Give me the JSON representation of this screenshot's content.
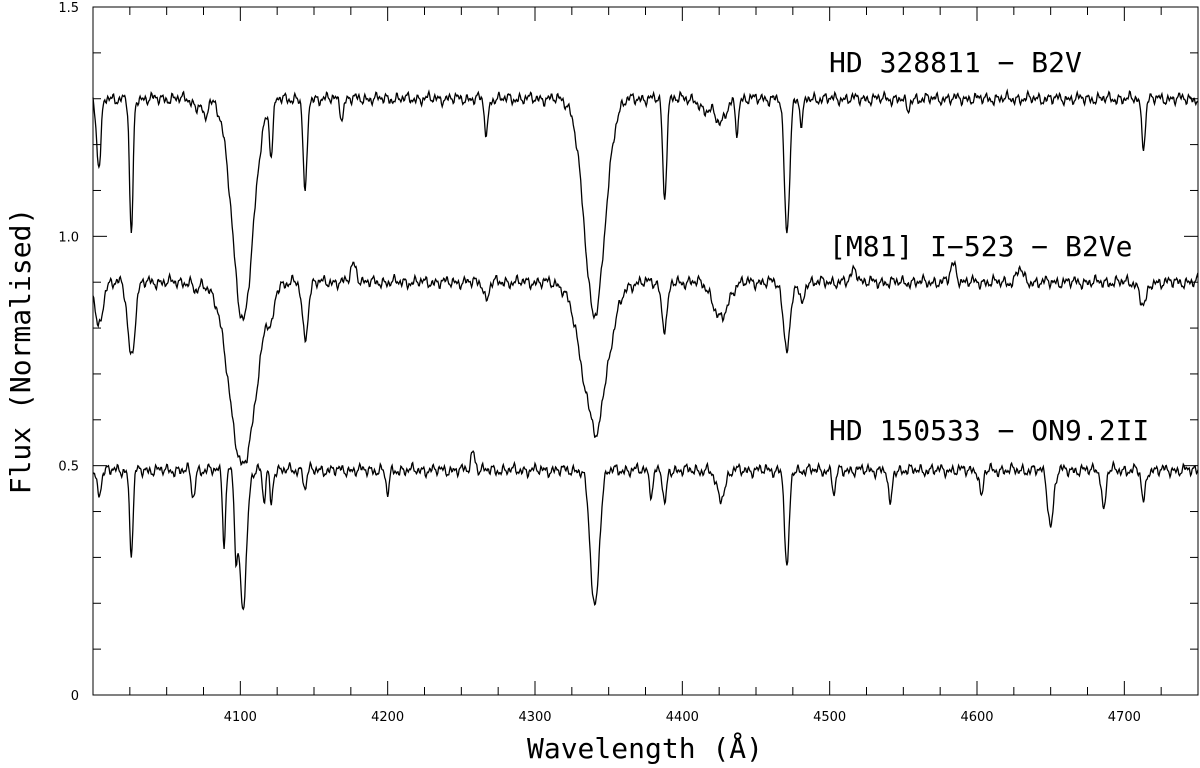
{
  "chart_data": {
    "type": "line",
    "title": "",
    "xlabel": "Wavelength (Å)",
    "ylabel": "Flux (Normalised)",
    "xlim": [
      4000,
      4750
    ],
    "ylim": [
      0,
      1.5
    ],
    "x_ticks": [
      4100,
      4200,
      4300,
      4400,
      4500,
      4600,
      4700
    ],
    "y_ticks": [
      0,
      0.5,
      1.0,
      1.5
    ],
    "y_tick_labels": [
      "0",
      "0.5",
      "1.0",
      "1.5"
    ],
    "grid": false,
    "series": [
      {
        "name": "HD 328811 − B2V",
        "continuum": 1.3,
        "lines": [
          {
            "x": 4004,
            "depth": 0.15,
            "width": 1.5
          },
          {
            "x": 4026,
            "depth": 0.3,
            "width": 1.2
          },
          {
            "x": 4070,
            "depth": 0.02,
            "width": 2
          },
          {
            "x": 4076,
            "depth": 0.05,
            "width": 1.5
          },
          {
            "x": 4101.7,
            "depth": 0.48,
            "width": 7
          },
          {
            "x": 4121,
            "depth": 0.11,
            "width": 1.2
          },
          {
            "x": 4144,
            "depth": 0.21,
            "width": 1.3
          },
          {
            "x": 4169,
            "depth": 0.04,
            "width": 1.2
          },
          {
            "x": 4267,
            "depth": 0.08,
            "width": 1.2
          },
          {
            "x": 4340.5,
            "depth": 0.47,
            "width": 7
          },
          {
            "x": 4388,
            "depth": 0.22,
            "width": 1.3
          },
          {
            "x": 4415,
            "depth": 0.03,
            "width": 3
          },
          {
            "x": 4426,
            "depth": 0.05,
            "width": 4
          },
          {
            "x": 4437,
            "depth": 0.07,
            "width": 1.1
          },
          {
            "x": 4471,
            "depth": 0.29,
            "width": 1.8
          },
          {
            "x": 4481,
            "depth": 0.06,
            "width": 1.1
          },
          {
            "x": 4553,
            "depth": 0.03,
            "width": 1.2
          },
          {
            "x": 4713,
            "depth": 0.1,
            "width": 1.3
          }
        ]
      },
      {
        "name": "[M81] I−523 − B2Ve",
        "continuum": 0.9,
        "lines": [
          {
            "x": 4004,
            "depth": 0.1,
            "width": 2.5
          },
          {
            "x": 4026,
            "depth": 0.16,
            "width": 2.5
          },
          {
            "x": 4070,
            "depth": 0.02,
            "width": 2
          },
          {
            "x": 4101.7,
            "depth": 0.4,
            "width": 9
          },
          {
            "x": 4121,
            "depth": 0.06,
            "width": 1.8
          },
          {
            "x": 4144,
            "depth": 0.12,
            "width": 2
          },
          {
            "x": 4177,
            "depth": -0.04,
            "width": 2
          },
          {
            "x": 4267,
            "depth": 0.04,
            "width": 1.5
          },
          {
            "x": 4340.5,
            "depth": 0.3,
            "width": 9
          },
          {
            "x": 4342,
            "depth": 0.05,
            "width": 1.5
          },
          {
            "x": 4388,
            "depth": 0.1,
            "width": 2
          },
          {
            "x": 4426,
            "depth": 0.08,
            "width": 5
          },
          {
            "x": 4471,
            "depth": 0.14,
            "width": 2.5
          },
          {
            "x": 4481,
            "depth": 0.05,
            "width": 1.5
          },
          {
            "x": 4517,
            "depth": -0.03,
            "width": 2
          },
          {
            "x": 4584,
            "depth": -0.04,
            "width": 2
          },
          {
            "x": 4629,
            "depth": -0.03,
            "width": 2
          },
          {
            "x": 4713,
            "depth": 0.05,
            "width": 2.5
          }
        ]
      },
      {
        "name": "HD 150533 − ON9.2II",
        "continuum": 0.49,
        "lines": [
          {
            "x": 4004,
            "depth": 0.05,
            "width": 1.5
          },
          {
            "x": 4026,
            "depth": 0.18,
            "width": 1.2
          },
          {
            "x": 4068,
            "depth": 0.06,
            "width": 1.2
          },
          {
            "x": 4089,
            "depth": 0.16,
            "width": 1.0
          },
          {
            "x": 4097,
            "depth": 0.16,
            "width": 1.0
          },
          {
            "x": 4101.7,
            "depth": 0.3,
            "width": 2.5
          },
          {
            "x": 4116,
            "depth": 0.07,
            "width": 1.0
          },
          {
            "x": 4121,
            "depth": 0.07,
            "width": 1.0
          },
          {
            "x": 4144,
            "depth": 0.04,
            "width": 1.0
          },
          {
            "x": 4200,
            "depth": 0.05,
            "width": 1.2
          },
          {
            "x": 4258,
            "depth": -0.04,
            "width": 1.5
          },
          {
            "x": 4340.5,
            "depth": 0.3,
            "width": 3
          },
          {
            "x": 4379,
            "depth": 0.05,
            "width": 1.2
          },
          {
            "x": 4388,
            "depth": 0.08,
            "width": 1.2
          },
          {
            "x": 4426,
            "depth": 0.06,
            "width": 3
          },
          {
            "x": 4471,
            "depth": 0.22,
            "width": 1.5
          },
          {
            "x": 4503,
            "depth": 0.05,
            "width": 1.2
          },
          {
            "x": 4541,
            "depth": 0.08,
            "width": 1.2
          },
          {
            "x": 4603,
            "depth": 0.06,
            "width": 1.2
          },
          {
            "x": 4650,
            "depth": 0.12,
            "width": 2.0
          },
          {
            "x": 4686,
            "depth": 0.09,
            "width": 1.3
          },
          {
            "x": 4713,
            "depth": 0.07,
            "width": 1.3
          }
        ]
      }
    ]
  }
}
